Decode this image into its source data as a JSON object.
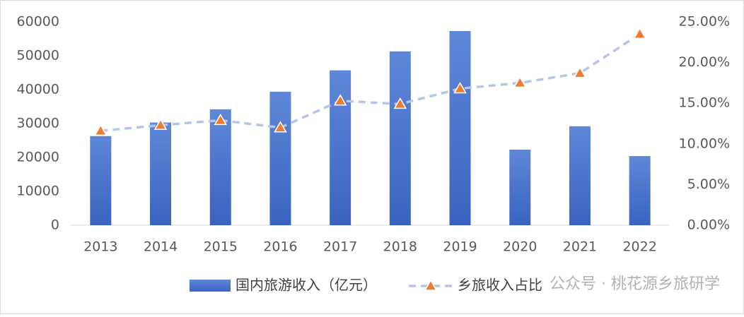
{
  "chart_data": {
    "type": "bar-line",
    "categories": [
      "2013",
      "2014",
      "2015",
      "2016",
      "2017",
      "2018",
      "2019",
      "2020",
      "2021",
      "2022"
    ],
    "series": [
      {
        "name": "国内旅游收入（亿元）",
        "type": "bar",
        "color": "#4a74cc",
        "values": [
          26300,
          30300,
          34200,
          39400,
          45700,
          51300,
          57300,
          22300,
          29200,
          20400
        ]
      },
      {
        "name": "乡旅收入占比",
        "type": "line",
        "axis": "y2",
        "color": "#b4c6e7",
        "marker_color": "#ed7d31",
        "values": [
          11.6,
          12.3,
          12.9,
          12.0,
          15.3,
          14.9,
          16.8,
          17.5,
          18.7,
          23.5
        ]
      }
    ],
    "ylim": [
      0,
      60000
    ],
    "yticks": [
      0,
      10000,
      20000,
      30000,
      40000,
      50000,
      60000
    ],
    "y2lim": [
      0,
      25
    ],
    "y2ticks": [
      {
        "value": 0,
        "label": "0.00%"
      },
      {
        "value": 5,
        "label": "5.00%"
      },
      {
        "value": 10,
        "label": "10.00%"
      },
      {
        "value": 15,
        "label": "15.00%"
      },
      {
        "value": 20,
        "label": "20.00%"
      },
      {
        "value": 25,
        "label": "25.00%"
      }
    ],
    "watermark": "公众号 · 桃花源乡旅研学"
  }
}
